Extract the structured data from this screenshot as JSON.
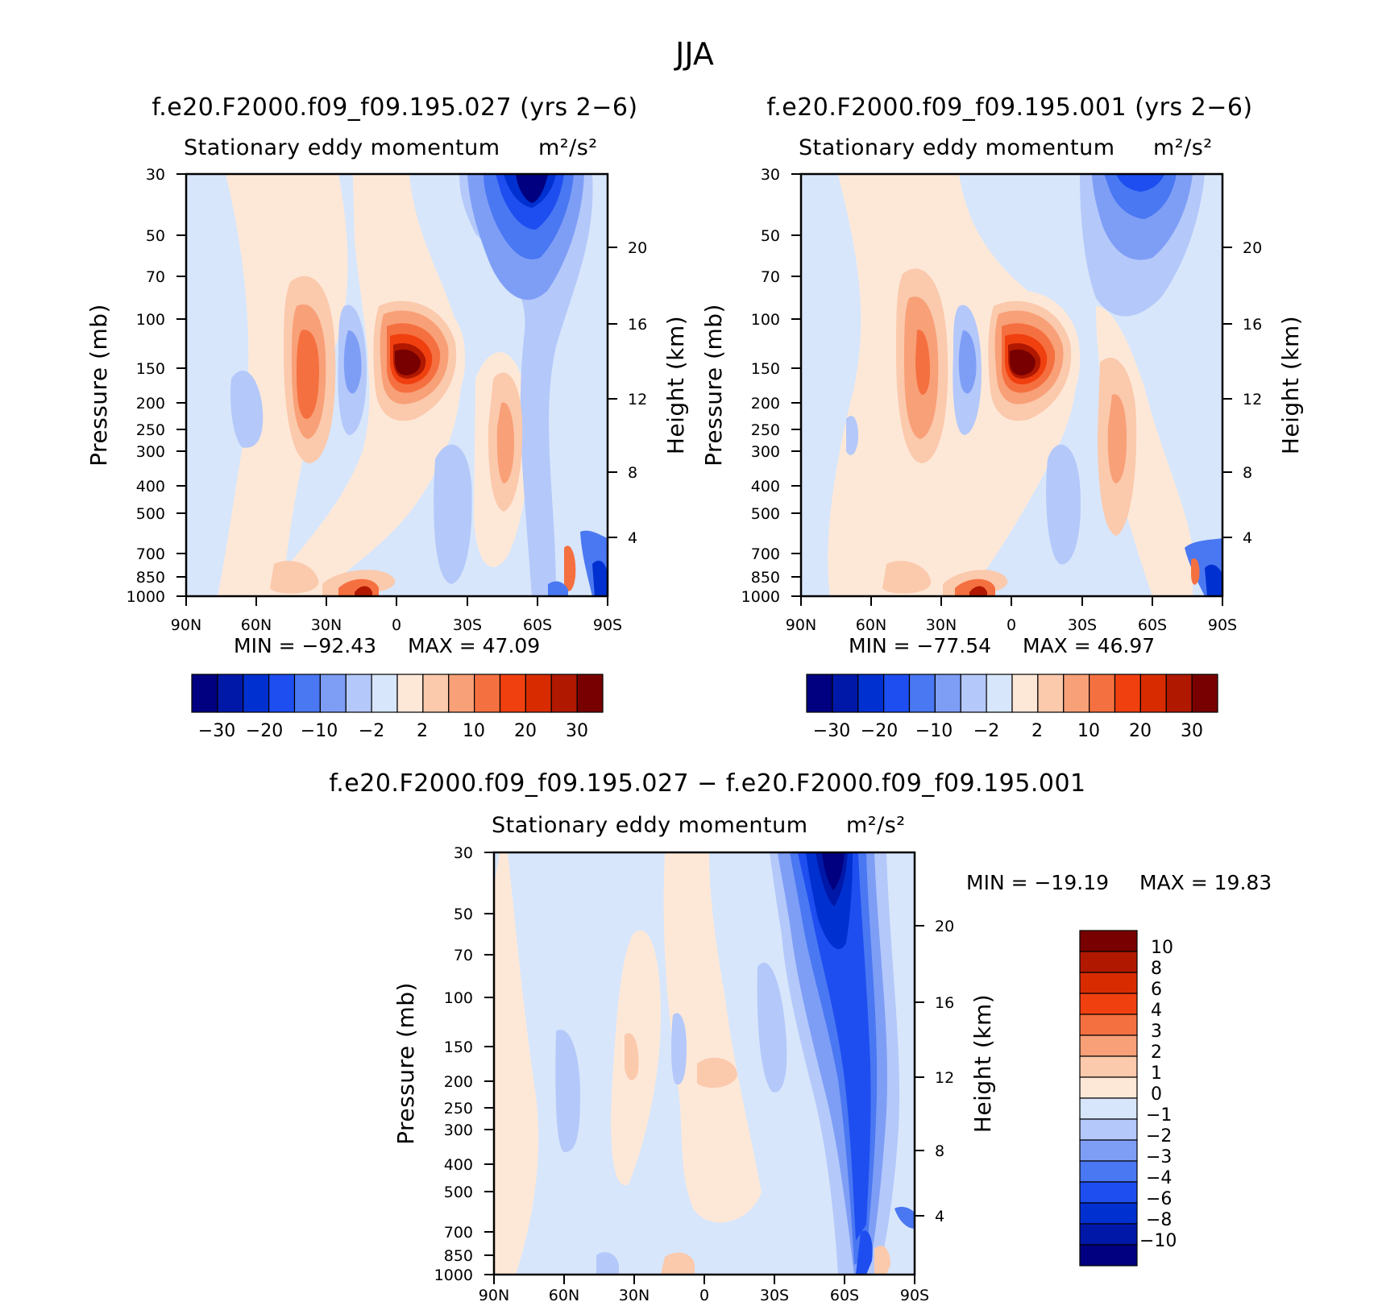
{
  "title": "JJA",
  "colors": {
    "palette17": [
      "#000080",
      "#0018a8",
      "#0030d0",
      "#1e4ef0",
      "#4a78f2",
      "#7e9ef6",
      "#b4c8fa",
      "#d7e6fb",
      "#fde8d8",
      "#fbc9ac",
      "#f8a078",
      "#f57040",
      "#f04010",
      "#d82c00",
      "#b01800",
      "#780000"
    ],
    "diff_palette": [
      "#000080",
      "#0018a8",
      "#0030d0",
      "#1e4ef0",
      "#4a78f2",
      "#7e9ef6",
      "#b4c8fa",
      "#d7e6fb",
      "#fde8d8",
      "#fbc9ac",
      "#f8a078",
      "#f57040",
      "#f04010",
      "#d82c00",
      "#b01800",
      "#780000"
    ]
  },
  "panels": {
    "left": {
      "title": "f.e20.F2000.f09_f09.195.027 (yrs 2−6)",
      "subtitle": "Stationary eddy momentum",
      "units": "m²/s²",
      "min_label": "MIN = −92.43",
      "max_label": "MAX = 47.09",
      "ylabel": "Pressure (mb)",
      "ylabel_right": "Height (km)"
    },
    "right": {
      "title": "f.e20.F2000.f09_f09.195.001 (yrs 2−6)",
      "subtitle": "Stationary eddy momentum",
      "units": "m²/s²",
      "min_label": "MIN = −77.54",
      "max_label": "MAX = 46.97",
      "ylabel": "Pressure (mb)",
      "ylabel_right": "Height (km)"
    },
    "diff": {
      "title": "f.e20.F2000.f09_f09.195.027 − f.e20.F2000.f09_f09.195.001",
      "subtitle": "Stationary eddy momentum",
      "units": "m²/s²",
      "min_label": "MIN = −19.19",
      "max_label": "MAX = 19.83",
      "ylabel": "Pressure (mb)",
      "ylabel_right": "Height (km)"
    }
  },
  "chart_data": [
    {
      "type": "heatmap",
      "name": "left",
      "title": "f.e20.F2000.f09_f09.195.027 (yrs 2−6)",
      "subtitle": "Stationary eddy momentum m²/s²",
      "x_tick_labels": [
        "90N",
        "60N",
        "30N",
        "0",
        "30S",
        "60S",
        "90S"
      ],
      "x_range": [
        90,
        -90
      ],
      "y_tick_labels": [
        "30",
        "50",
        "70",
        "100",
        "150",
        "200",
        "250",
        "300",
        "400",
        "500",
        "700",
        "850",
        "1000"
      ],
      "y_range_mb": [
        1000,
        30
      ],
      "height_tick_labels": [
        "4",
        "8",
        "12",
        "16",
        "20"
      ],
      "ylabel": "Pressure (mb)",
      "ylabel_right": "Height (km)",
      "min": -92.43,
      "max": 47.09,
      "colorbar_labels": [
        "−30",
        "−20",
        "−10",
        "−2",
        "2",
        "10",
        "20",
        "30"
      ],
      "features": [
        {
          "lat": -60,
          "p": 30,
          "value": -80
        },
        {
          "lat": -5,
          "p": 150,
          "value": 40
        },
        {
          "lat": 35,
          "p": 170,
          "value": 15
        },
        {
          "lat": 17,
          "p": 150,
          "value": -8
        },
        {
          "lat": -47,
          "p": 250,
          "value": 8
        }
      ]
    },
    {
      "type": "heatmap",
      "name": "right",
      "title": "f.e20.F2000.f09_f09.195.001 (yrs 2−6)",
      "subtitle": "Stationary eddy momentum m²/s²",
      "x_tick_labels": [
        "90N",
        "60N",
        "30N",
        "0",
        "30S",
        "60S",
        "90S"
      ],
      "x_range": [
        90,
        -90
      ],
      "y_tick_labels": [
        "30",
        "50",
        "70",
        "100",
        "150",
        "200",
        "250",
        "300",
        "400",
        "500",
        "700",
        "850",
        "1000"
      ],
      "y_range_mb": [
        1000,
        30
      ],
      "height_tick_labels": [
        "4",
        "8",
        "12",
        "16",
        "20"
      ],
      "ylabel": "Pressure (mb)",
      "ylabel_right": "Height (km)",
      "min": -77.54,
      "max": 46.97,
      "colorbar_labels": [
        "−30",
        "−20",
        "−10",
        "−2",
        "2",
        "10",
        "20",
        "30"
      ],
      "features": [
        {
          "lat": -55,
          "p": 30,
          "value": -20
        },
        {
          "lat": -5,
          "p": 150,
          "value": 40
        },
        {
          "lat": 35,
          "p": 170,
          "value": 15
        },
        {
          "lat": 17,
          "p": 150,
          "value": -8
        },
        {
          "lat": -47,
          "p": 250,
          "value": 6
        }
      ]
    },
    {
      "type": "heatmap",
      "name": "diff",
      "title": "f.e20.F2000.f09_f09.195.027 − f.e20.F2000.f09_f09.195.001",
      "subtitle": "Stationary eddy momentum m²/s²",
      "x_tick_labels": [
        "90N",
        "60N",
        "30N",
        "0",
        "30S",
        "60S",
        "90S"
      ],
      "x_range": [
        90,
        -90
      ],
      "y_tick_labels": [
        "30",
        "50",
        "70",
        "100",
        "150",
        "200",
        "250",
        "300",
        "400",
        "500",
        "700",
        "850",
        "1000"
      ],
      "y_range_mb": [
        1000,
        30
      ],
      "height_tick_labels": [
        "4",
        "8",
        "12",
        "16",
        "20"
      ],
      "ylabel": "Pressure (mb)",
      "ylabel_right": "Height (km)",
      "min": -19.19,
      "max": 19.83,
      "colorbar_labels": [
        "10",
        "8",
        "6",
        "4",
        "3",
        "2",
        "1",
        "0",
        "−1",
        "−2",
        "−3",
        "−4",
        "−6",
        "−8",
        "−10"
      ],
      "features": [
        {
          "lat": -60,
          "p": 30,
          "value": -19
        },
        {
          "lat": -70,
          "p": 300,
          "value": -6
        },
        {
          "lat": 0,
          "p": 200,
          "value": 1.5
        }
      ]
    }
  ]
}
